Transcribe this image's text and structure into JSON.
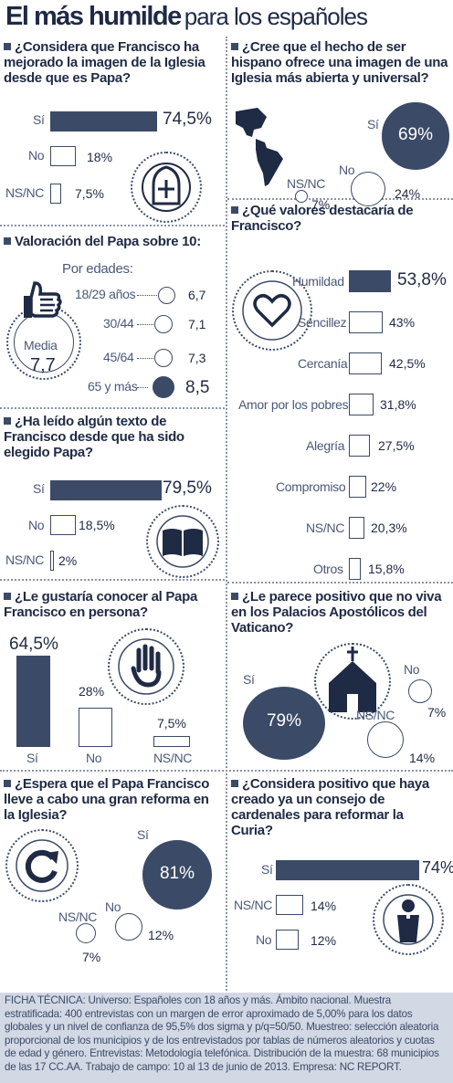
{
  "title": {
    "bold": "El más humilde",
    "light": "para los españoles"
  },
  "colors": {
    "primary": "#3b4a66",
    "dark": "#1f2a44",
    "footer_bg": "#d2d8e4"
  },
  "chart_data": [
    {
      "type": "bar",
      "title": "¿Considera que Francisco ha mejorado la imagen de la Iglesia desde que es Papa?",
      "icon": "mitre-icon",
      "categories": [
        "Sí",
        "No",
        "NS/NC"
      ],
      "values": [
        74.5,
        18,
        7.5
      ],
      "value_labels": [
        "74,5%",
        "18%",
        "7,5%"
      ]
    },
    {
      "type": "bubble",
      "title": "¿Cree que el hecho de ser hispano ofrece una imagen de una Iglesia más abierta y universal?",
      "icon": "americas-map-icon",
      "categories": [
        "Sí",
        "No",
        "NS/NC"
      ],
      "values": [
        69,
        24,
        7
      ],
      "value_labels": [
        "69%",
        "24%",
        "7%"
      ]
    },
    {
      "type": "dot",
      "title": "Valoración del Papa sobre 10:",
      "icon": "thumbs-up-icon",
      "subtitle": "Por edades:",
      "average_label": "Media",
      "average_value": "7,7",
      "average": 7.7,
      "categories": [
        "18/29 años",
        "30/44",
        "45/64",
        "65 y más"
      ],
      "values": [
        6.7,
        7.1,
        7.3,
        8.5
      ],
      "value_labels": [
        "6,7",
        "7,1",
        "7,3",
        "8,5"
      ]
    },
    {
      "type": "bar",
      "title": "¿Qué valores destacaría de Francisco?",
      "icon": "heart-icon",
      "categories": [
        "Humildad",
        "Sencillez",
        "Cercanía",
        "Amor por los pobres",
        "Alegría",
        "Compromiso",
        "NS/NC",
        "Otros"
      ],
      "values": [
        53.8,
        43,
        42.5,
        31.8,
        27.5,
        22,
        20.3,
        15.8
      ],
      "value_labels": [
        "53,8%",
        "43%",
        "42,5%",
        "31,8%",
        "27,5%",
        "22%",
        "20,3%",
        "15,8%"
      ]
    },
    {
      "type": "bar",
      "title": "¿Ha leído algún texto de Francisco desde que ha sido elegido Papa?",
      "icon": "book-icon",
      "categories": [
        "Sí",
        "No",
        "NS/NC"
      ],
      "values": [
        79.5,
        18.5,
        2
      ],
      "value_labels": [
        "79,5%",
        "18,5%",
        "2%"
      ]
    },
    {
      "type": "bar",
      "orientation": "vertical",
      "title": "¿Le gustaría conocer al Papa Francisco en persona?",
      "icon": "raised-hand-icon",
      "categories": [
        "Sí",
        "No",
        "NS/NC"
      ],
      "values": [
        64.5,
        28,
        7.5
      ],
      "value_labels": [
        "64,5%",
        "28%",
        "7,5%"
      ]
    },
    {
      "type": "bubble",
      "title": "¿Le parece positivo que no viva en los Palacios Apostólicos del Vaticano?",
      "icon": "church-icon",
      "categories": [
        "Sí",
        "NS/NC",
        "No"
      ],
      "values": [
        79,
        14,
        7
      ],
      "value_labels": [
        "79%",
        "14%",
        "7%"
      ]
    },
    {
      "type": "bubble",
      "title": "¿Espera que el Papa Francisco lleve a cabo una gran reforma en la Iglesia?",
      "icon": "refresh-arrow-icon",
      "categories": [
        "Sí",
        "No",
        "NS/NC"
      ],
      "values": [
        81,
        12,
        7
      ],
      "value_labels": [
        "81%",
        "12%",
        "7%"
      ]
    },
    {
      "type": "bar",
      "title": "¿Considera positivo que haya creado ya un consejo de cardenales para reformar la Curia?",
      "icon": "priest-icon",
      "categories": [
        "Sí",
        "NS/NC",
        "No"
      ],
      "values": [
        74,
        14,
        12
      ],
      "value_labels": [
        "74%",
        "14%",
        "12%"
      ]
    }
  ],
  "ficha_tecnica": "FICHA TÉCNICA: Universo: Españoles con 18 años y más. Ámbito nacional. Muestra estratificada: 400 entrevistas con un margen de error aproximado de 5,00% para los datos globales y un nivel de confianza de 95,5% dos sigma y p/q=50/50. Muestreo: selección aleatoria proporcional de los municipios y de los entrevistados por tablas de números aleatorios y cuotas de edad y género. Entrevistas: Metodología telefónica. Distribución de la muestra: 68 municipios de las 17 CC.AA. Trabajo de campo: 10 al 13 de junio de 2013. Empresa: NC REPORT."
}
